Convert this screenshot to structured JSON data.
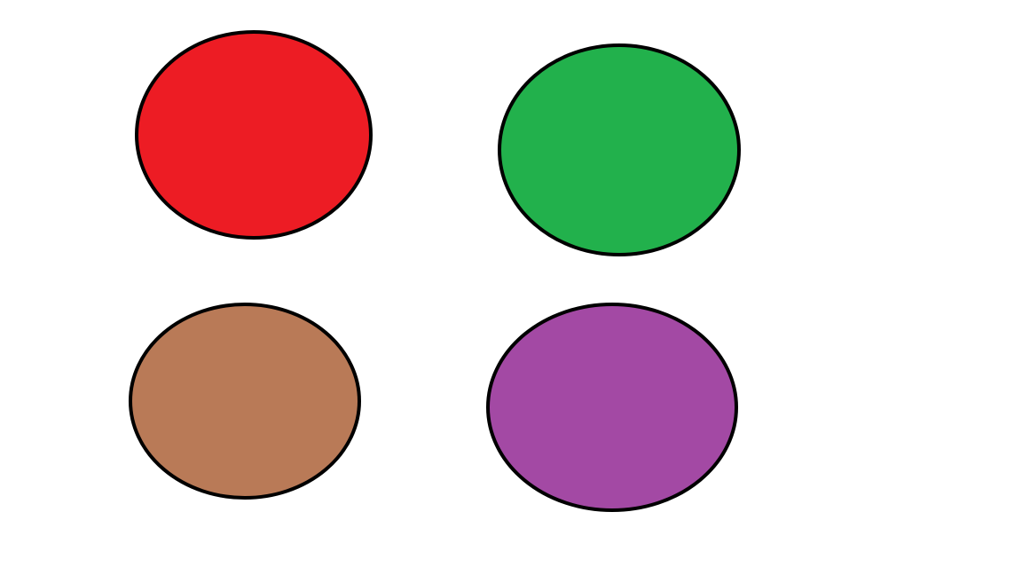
{
  "stroke_color": "#000000",
  "background_color": "#ffffff",
  "shapes": [
    {
      "id": "red-ellipse",
      "color": "#ed1c24"
    },
    {
      "id": "green-ellipse",
      "color": "#22b14c"
    },
    {
      "id": "brown-ellipse",
      "color": "#b97a57"
    },
    {
      "id": "purple-ellipse",
      "color": "#a349a4"
    }
  ]
}
